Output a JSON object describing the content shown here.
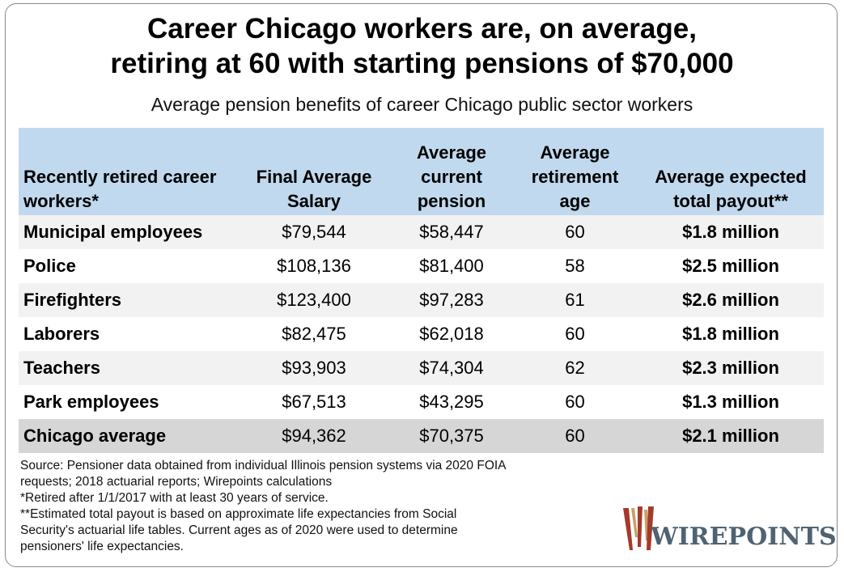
{
  "title": {
    "line1": "Career Chicago workers are, on average,",
    "line2": "retiring at 60 with starting pensions of $70,000"
  },
  "subtitle": "Average pension benefits of career Chicago public sector workers",
  "table": {
    "headers": [
      "Recently retired career workers*",
      "Final Average Salary",
      "Average current pension",
      "Average retirement age",
      "Average expected total payout**"
    ],
    "rows": [
      {
        "name": "Municipal employees",
        "salary": "$79,544",
        "pension": "$58,447",
        "age": "60",
        "payout": "$1.8 million"
      },
      {
        "name": "Police",
        "salary": "$108,136",
        "pension": "$81,400",
        "age": "58",
        "payout": "$2.5 million"
      },
      {
        "name": "Firefighters",
        "salary": "$123,400",
        "pension": "$97,283",
        "age": "61",
        "payout": "$2.6 million"
      },
      {
        "name": "Laborers",
        "salary": "$82,475",
        "pension": "$62,018",
        "age": "60",
        "payout": "$1.8 million"
      },
      {
        "name": "Teachers",
        "salary": "$93,903",
        "pension": "$74,304",
        "age": "62",
        "payout": "$2.3 million"
      },
      {
        "name": "Park employees",
        "salary": "$67,513",
        "pension": "$43,295",
        "age": "60",
        "payout": "$1.3 million"
      },
      {
        "name": "Chicago average",
        "salary": "$94,362",
        "pension": "$70,375",
        "age": "60",
        "payout": "$2.1 million"
      }
    ]
  },
  "notes": {
    "source": "Source: Pensioner data obtained from individual Illinois pension systems via 2020 FOIA\nrequests; 2018 actuarial reports; Wirepoints calculations",
    "note1": "*Retired after 1/1/2017 with at least 30 years of service.",
    "note2": "**Estimated total payout is based on approximate life expectancies from Social\nSecurity's actuarial life tables. Current ages as of 2020 were used to determine\npensioners' life expectancies."
  },
  "logo": {
    "text": "WIREPOINTS",
    "colors": {
      "red": "#a33a2c",
      "tan": "#c7a064",
      "slate": "#4f6372"
    }
  }
}
